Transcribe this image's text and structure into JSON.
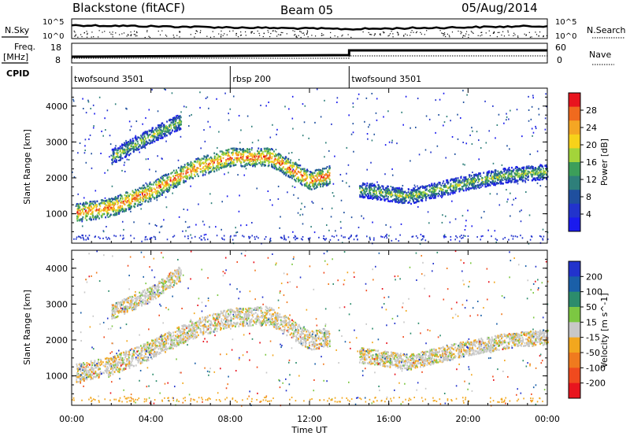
{
  "header": {
    "station": "Blackstone (fitACF)",
    "beam": "Beam 05",
    "date": "05/Aug/2014"
  },
  "side_labels": {
    "nsky": "N.Sky",
    "freq_line1": "Freq.",
    "freq_line2": "[MHz]",
    "cpid": "CPID",
    "nsearch": "N.Search",
    "nave": "Nave"
  },
  "strip_ticks": {
    "noise_left": [
      "10^5",
      "10^0"
    ],
    "noise_right": [
      "10^5",
      "10^0"
    ],
    "freq_left": [
      "18",
      "8"
    ],
    "nave_right": [
      "60",
      "0"
    ]
  },
  "cpid_segments": [
    {
      "start_hour": 0.0,
      "end_hour": 8.0,
      "label": "twofsound 3501"
    },
    {
      "start_hour": 8.0,
      "end_hour": 14.0,
      "label": "rbsp 200"
    },
    {
      "start_hour": 14.0,
      "end_hour": 24.0,
      "label": "twofsound 3501"
    }
  ],
  "x_axis": {
    "title": "Time UT",
    "ticks": [
      "00:00",
      "04:00",
      "08:00",
      "12:00",
      "16:00",
      "20:00",
      "00:00"
    ]
  },
  "chart_data": [
    {
      "type": "heatmap",
      "title": "",
      "xlabel": "Time UT",
      "ylabel": "Slant Range [km]",
      "xlim": [
        0,
        24
      ],
      "ylim": [
        180,
        4500
      ],
      "yticks": [
        1000,
        2000,
        3000,
        4000
      ],
      "colorbar": {
        "label": "Power [dB]",
        "ticks": [
          "28",
          "24",
          "20",
          "16",
          "12",
          "8",
          "4"
        ],
        "colors": [
          "#e8141e",
          "#f06a1e",
          "#f5a623",
          "#f7d21a",
          "#a3d43a",
          "#3c9e5a",
          "#2e7f7a",
          "#1f4f9e",
          "#2233cc",
          "#1a1aee"
        ]
      },
      "features": [
        {
          "name": "main band",
          "points": [
            [
              0.2,
              1050
            ],
            [
              2,
              1200
            ],
            [
              4,
              1650
            ],
            [
              6,
              2250
            ],
            [
              8,
              2600
            ],
            [
              10,
              2600
            ],
            [
              12,
              1950
            ],
            [
              13,
              2100
            ]
          ]
        },
        {
          "name": "upper band",
          "points": [
            [
              2,
              2600
            ],
            [
              4,
              3200
            ],
            [
              5.5,
              3600
            ]
          ]
        },
        {
          "name": "evening band",
          "points": [
            [
              14.5,
              1700
            ],
            [
              17,
              1500
            ],
            [
              20,
              1900
            ],
            [
              22,
              2100
            ],
            [
              24,
              2200
            ]
          ]
        }
      ]
    },
    {
      "type": "heatmap",
      "title": "",
      "xlabel": "Time UT",
      "ylabel": "Slant Range [km]",
      "xlim": [
        0,
        24
      ],
      "ylim": [
        180,
        4500
      ],
      "yticks": [
        1000,
        2000,
        3000,
        4000
      ],
      "colorbar": {
        "label": "Velocity [m s^-1]",
        "ticks": [
          "200",
          "100",
          "50",
          "15",
          "-15",
          "-50",
          "-100",
          "-200"
        ],
        "colors": [
          "#2233cc",
          "#1a5fa8",
          "#2c8c6c",
          "#7cc742",
          "#c8c8c8",
          "#f2a71e",
          "#f07a1e",
          "#f04a1e",
          "#e8141e"
        ]
      },
      "features": [
        {
          "name": "main band",
          "points": [
            [
              0.2,
              1100
            ],
            [
              2,
              1300
            ],
            [
              4,
              1750
            ],
            [
              6,
              2300
            ],
            [
              8,
              2650
            ],
            [
              10,
              2700
            ],
            [
              12,
              2000
            ],
            [
              13,
              2100
            ]
          ]
        },
        {
          "name": "upper band",
          "points": [
            [
              2,
              2800
            ],
            [
              4,
              3300
            ],
            [
              5.5,
              3900
            ]
          ]
        },
        {
          "name": "evening band",
          "points": [
            [
              14.5,
              1600
            ],
            [
              17,
              1400
            ],
            [
              20,
              1800
            ],
            [
              22,
              2000
            ],
            [
              24,
              2100
            ]
          ]
        }
      ]
    }
  ]
}
